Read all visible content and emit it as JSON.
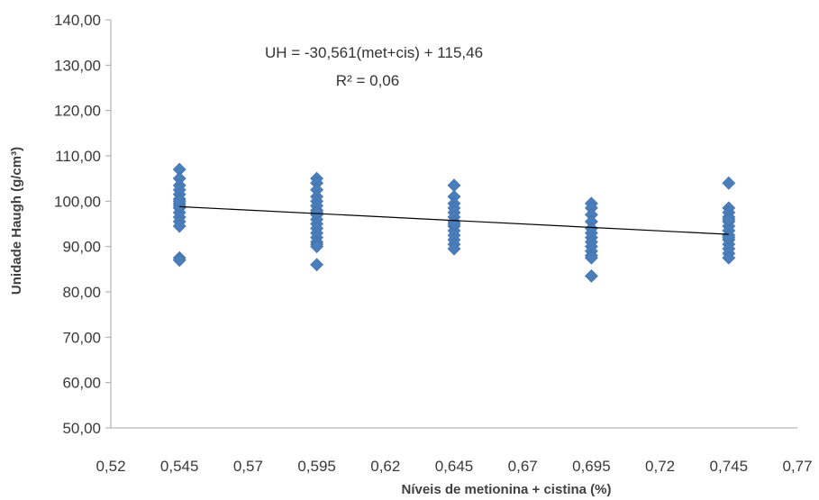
{
  "chart_data": {
    "type": "scatter",
    "title": "",
    "xlabel": "Níveis de metionina + cistina (%)",
    "ylabel": "Unidade Haugh (g/cm³)",
    "xlim": [
      0.52,
      0.77
    ],
    "ylim": [
      50,
      140
    ],
    "x_ticks": [
      "0,52",
      "0,545",
      "0,57",
      "0,595",
      "0,62",
      "0,645",
      "0,67",
      "0,695",
      "0,72",
      "0,745",
      "0,77"
    ],
    "y_ticks": [
      "50,00",
      "60,00",
      "70,00",
      "80,00",
      "90,00",
      "100,00",
      "110,00",
      "120,00",
      "130,00",
      "140,00"
    ],
    "grid": false,
    "legend": "none",
    "marker": "diamond",
    "marker_color": "#4a7ebb",
    "line_color": "#000000",
    "annotation": {
      "equation": "UH = -30,561(met+cis) + 115,46",
      "r2": "R² = 0,06"
    },
    "trendline": {
      "slope": -30.561,
      "intercept": 115.46,
      "x_range": [
        0.545,
        0.745
      ]
    },
    "series": [
      {
        "x": [
          0.545,
          0.545,
          0.545,
          0.545,
          0.545,
          0.545,
          0.545,
          0.545,
          0.545,
          0.545,
          0.545,
          0.545,
          0.545,
          0.545,
          0.545,
          0.545,
          0.595,
          0.595,
          0.595,
          0.595,
          0.595,
          0.595,
          0.595,
          0.595,
          0.595,
          0.595,
          0.595,
          0.595,
          0.595,
          0.595,
          0.595,
          0.595,
          0.595,
          0.595,
          0.645,
          0.645,
          0.645,
          0.645,
          0.645,
          0.645,
          0.645,
          0.645,
          0.645,
          0.645,
          0.645,
          0.645,
          0.645,
          0.645,
          0.695,
          0.695,
          0.695,
          0.695,
          0.695,
          0.695,
          0.695,
          0.695,
          0.695,
          0.695,
          0.695,
          0.695,
          0.695,
          0.745,
          0.745,
          0.745,
          0.745,
          0.745,
          0.745,
          0.745,
          0.745,
          0.745,
          0.745,
          0.745,
          0.745,
          0.745,
          0.745,
          0.745
        ],
        "y": [
          107,
          105,
          103.5,
          102.5,
          101.5,
          100.5,
          99.5,
          98.5,
          97.5,
          96.5,
          95.5,
          94.5,
          87.5,
          87,
          99,
          100,
          105,
          104,
          102.5,
          101,
          100,
          99,
          98,
          97,
          96,
          95,
          94,
          93,
          92,
          91,
          90.5,
          90,
          86,
          97.5,
          103.5,
          101,
          99.5,
          98.5,
          97.5,
          96.5,
          95.5,
          94.5,
          93.5,
          92.5,
          91.5,
          90.5,
          89.5,
          95,
          99.5,
          98.5,
          97,
          95.5,
          94,
          93,
          92,
          91,
          90,
          89,
          88,
          87.5,
          83.5,
          104,
          98.5,
          97.5,
          96.5,
          95.5,
          94.5,
          93.5,
          92.5,
          91.5,
          90.5,
          89.5,
          88.5,
          87.5,
          96,
          92
        ]
      }
    ]
  }
}
